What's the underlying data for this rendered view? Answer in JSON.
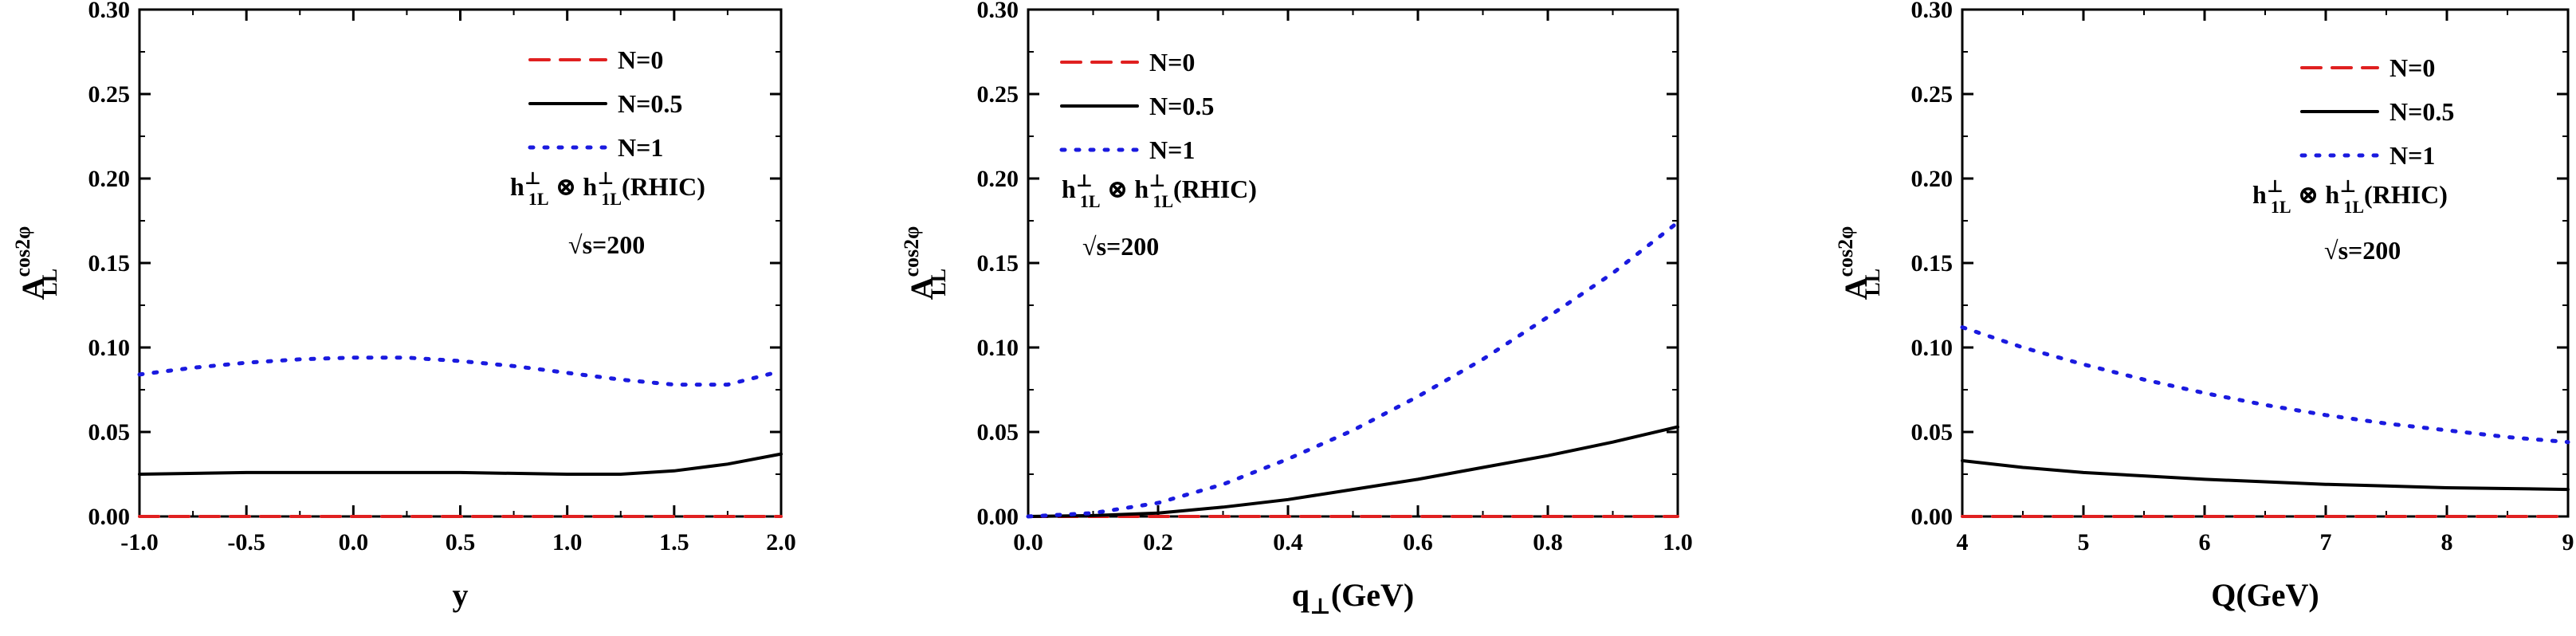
{
  "chart_data": [
    {
      "type": "line",
      "xlabel": "y",
      "ylabel_main": "A",
      "ylabel_sup": "cos2φ",
      "ylabel_sub": "LL",
      "xlim": [
        -1.0,
        2.0
      ],
      "ylim": [
        0.0,
        0.3
      ],
      "xticks": [
        "-1.0",
        "-0.5",
        "0.0",
        "0.5",
        "1.0",
        "1.5",
        "2.0"
      ],
      "yticks": [
        "0.00",
        "0.05",
        "0.10",
        "0.15",
        "0.20",
        "0.25",
        "0.30"
      ],
      "legend_position": "top-right",
      "annotations": {
        "h_main1": "h",
        "h_sup1": "⊥",
        "h_sub1": "1L",
        "otimes": " ⊗ ",
        "h_main2": "h",
        "h_sup2": "⊥",
        "h_sub2": "1L",
        "h_tail": "(RHIC)",
        "sqrt_text": "√s=200"
      },
      "series": [
        {
          "name": "N=0",
          "color": "#e02020",
          "style": "dashed",
          "x": [
            -1.0,
            -0.5,
            0.0,
            0.5,
            1.0,
            1.5,
            2.0
          ],
          "y": [
            0.0,
            0.0,
            0.0,
            0.0,
            0.0,
            0.0,
            0.0
          ]
        },
        {
          "name": "N=0.5",
          "color": "#000000",
          "style": "solid",
          "x": [
            -1.0,
            -0.5,
            0.0,
            0.5,
            1.0,
            1.25,
            1.5,
            1.75,
            2.0
          ],
          "y": [
            0.025,
            0.026,
            0.026,
            0.026,
            0.025,
            0.025,
            0.027,
            0.031,
            0.037
          ]
        },
        {
          "name": "N=1",
          "color": "#1a1adf",
          "style": "dotted",
          "x": [
            -1.0,
            -0.75,
            -0.5,
            -0.25,
            0.0,
            0.25,
            0.5,
            0.75,
            1.0,
            1.25,
            1.5,
            1.75,
            2.0
          ],
          "y": [
            0.084,
            0.088,
            0.091,
            0.093,
            0.094,
            0.094,
            0.092,
            0.089,
            0.085,
            0.081,
            0.078,
            0.078,
            0.086
          ]
        }
      ]
    },
    {
      "type": "line",
      "xlabel_main": "q",
      "xlabel_sub": "⊥",
      "xlabel_tail": "(GeV)",
      "ylabel_main": "A",
      "ylabel_sup": "cos2φ",
      "ylabel_sub": "LL",
      "xlim": [
        0.0,
        1.0
      ],
      "ylim": [
        0.0,
        0.3
      ],
      "xticks": [
        "0.0",
        "0.2",
        "0.4",
        "0.6",
        "0.8",
        "1.0"
      ],
      "yticks": [
        "0.00",
        "0.05",
        "0.10",
        "0.15",
        "0.20",
        "0.25",
        "0.30"
      ],
      "legend_position": "top-left",
      "annotations": {
        "h_main1": "h",
        "h_sup1": "⊥",
        "h_sub1": "1L",
        "otimes": " ⊗ ",
        "h_main2": "h",
        "h_sup2": "⊥",
        "h_sub2": "1L",
        "h_tail": "(RHIC)",
        "sqrt_text": "√s=200"
      },
      "series": [
        {
          "name": "N=0",
          "color": "#e02020",
          "style": "dashed",
          "x": [
            0.0,
            0.2,
            0.4,
            0.6,
            0.8,
            1.0
          ],
          "y": [
            0.0,
            0.0,
            0.0,
            0.0,
            0.0,
            0.0
          ]
        },
        {
          "name": "N=0.5",
          "color": "#000000",
          "style": "solid",
          "x": [
            0.0,
            0.1,
            0.2,
            0.3,
            0.4,
            0.5,
            0.6,
            0.7,
            0.8,
            0.9,
            1.0
          ],
          "y": [
            0.0,
            0.0005,
            0.002,
            0.0055,
            0.01,
            0.016,
            0.022,
            0.029,
            0.036,
            0.044,
            0.053
          ]
        },
        {
          "name": "N=1",
          "color": "#1a1adf",
          "style": "dotted",
          "x": [
            0.0,
            0.1,
            0.2,
            0.3,
            0.4,
            0.5,
            0.6,
            0.7,
            0.8,
            0.9,
            1.0
          ],
          "y": [
            0.0,
            0.002,
            0.008,
            0.019,
            0.034,
            0.051,
            0.071,
            0.093,
            0.118,
            0.144,
            0.174
          ]
        }
      ]
    },
    {
      "type": "line",
      "xlabel": "Q(GeV)",
      "ylabel_main": "A",
      "ylabel_sup": "cos2φ",
      "ylabel_sub": "LL",
      "xlim": [
        4,
        9
      ],
      "ylim": [
        0.0,
        0.3
      ],
      "xticks": [
        "4",
        "5",
        "6",
        "7",
        "8",
        "9"
      ],
      "yticks": [
        "0.00",
        "0.05",
        "0.10",
        "0.15",
        "0.20",
        "0.25",
        "0.30"
      ],
      "legend_position": "top-right",
      "annotations": {
        "h_main1": "h",
        "h_sup1": "⊥",
        "h_sub1": "1L",
        "otimes": " ⊗ ",
        "h_main2": "h",
        "h_sup2": "⊥",
        "h_sub2": "1L",
        "h_tail": "(RHIC)",
        "sqrt_text": "√s=200"
      },
      "series": [
        {
          "name": "N=0",
          "color": "#e02020",
          "style": "dashed",
          "x": [
            4,
            5,
            6,
            7,
            8,
            9
          ],
          "y": [
            0.0,
            0.0,
            0.0,
            0.0,
            0.0,
            0.0
          ]
        },
        {
          "name": "N=0.5",
          "color": "#000000",
          "style": "solid",
          "x": [
            4,
            4.5,
            5,
            5.5,
            6,
            6.5,
            7,
            7.5,
            8,
            8.5,
            9
          ],
          "y": [
            0.033,
            0.029,
            0.026,
            0.024,
            0.022,
            0.0205,
            0.019,
            0.018,
            0.017,
            0.0165,
            0.016
          ]
        },
        {
          "name": "N=1",
          "color": "#1a1adf",
          "style": "dotted",
          "x": [
            4,
            4.5,
            5,
            5.5,
            6,
            6.5,
            7,
            7.5,
            8,
            8.5,
            9
          ],
          "y": [
            0.112,
            0.1,
            0.09,
            0.081,
            0.073,
            0.066,
            0.06,
            0.055,
            0.051,
            0.047,
            0.044
          ]
        }
      ]
    }
  ]
}
